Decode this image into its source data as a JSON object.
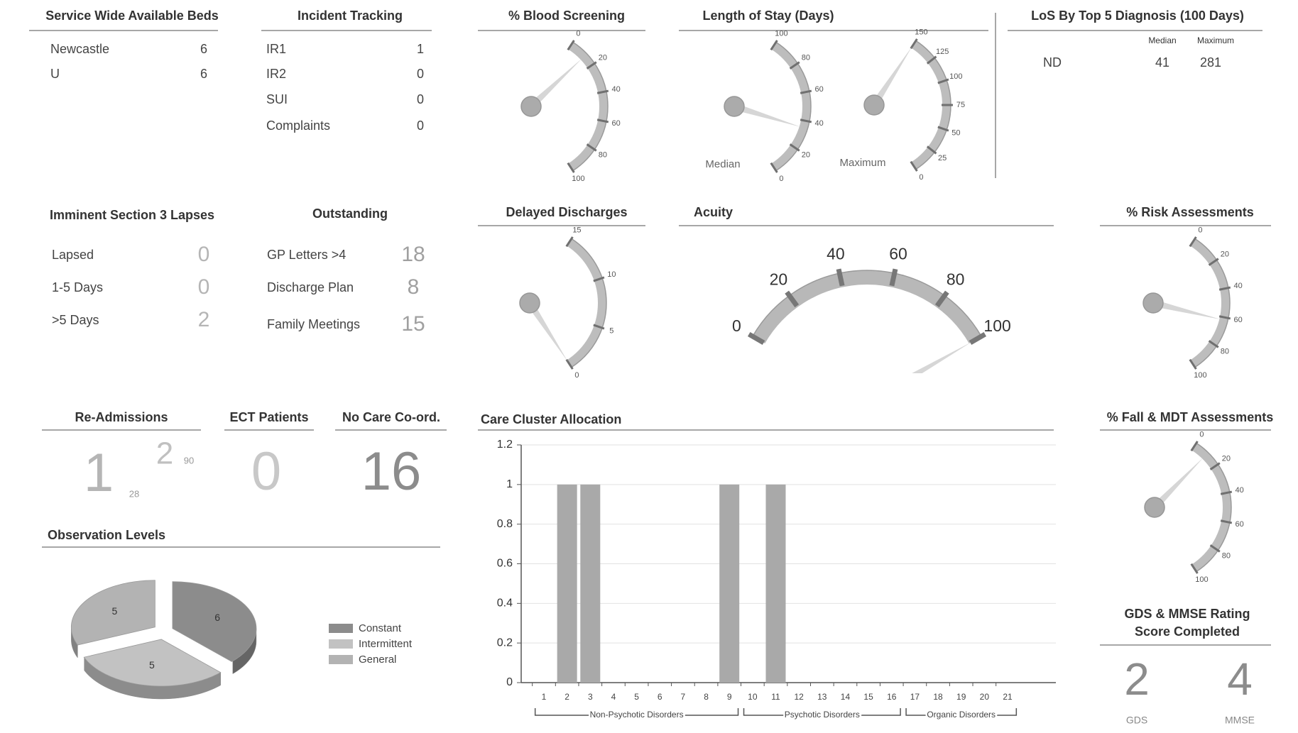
{
  "beds": {
    "title": "Service Wide Available Beds",
    "rows": [
      [
        "Newcastle",
        6
      ],
      [
        "U",
        6
      ]
    ]
  },
  "incidents": {
    "title": "Incident Tracking",
    "rows": [
      [
        "IR1",
        1
      ],
      [
        "IR2",
        0
      ],
      [
        "SUI",
        0
      ],
      [
        "Complaints",
        0
      ]
    ]
  },
  "los_diagnosis": {
    "title": "LoS By Top 5 Diagnosis (100 Days)",
    "columns": [
      "Median",
      "Maximum"
    ],
    "rows": [
      [
        "ND",
        41,
        281
      ]
    ]
  },
  "lapses": {
    "title": "Imminent Section 3 Lapses",
    "rows": [
      [
        "Lapsed",
        0
      ],
      [
        "1-5 Days",
        0
      ],
      [
        ">5 Days",
        2
      ]
    ]
  },
  "outstanding": {
    "title": "Outstanding",
    "rows": [
      [
        "GP Letters >4",
        18
      ],
      [
        "Discharge Plan",
        8
      ],
      [
        "Family Meetings",
        15
      ]
    ]
  },
  "readmissions": {
    "title": "Re-Admissions",
    "items": [
      {
        "value": 1,
        "days": 28
      },
      {
        "value": 2,
        "days": 90
      }
    ]
  },
  "ect": {
    "title": "ECT Patients",
    "value": 0
  },
  "no_care": {
    "title": "No Care Co-ord.",
    "value": 16
  },
  "gds_mmse": {
    "title_lines": [
      "GDS & MMSE Rating",
      "Score Completed"
    ],
    "items": [
      {
        "value": 2,
        "label": "GDS"
      },
      {
        "value": 4,
        "label": "MMSE"
      }
    ]
  },
  "chart_data": [
    {
      "type": "gauge",
      "title": "% Blood Screening",
      "gauges": [
        {
          "lim": [
            0,
            100
          ],
          "ticks": [
            0,
            20,
            40,
            60,
            80,
            100
          ],
          "value": 12
        }
      ]
    },
    {
      "type": "gauge",
      "title": "Length of Stay (Days)",
      "gauges": [
        {
          "label": "Median",
          "lim": [
            100,
            0
          ],
          "ticks": [
            0,
            20,
            40,
            60,
            80,
            100
          ],
          "value": 35
        },
        {
          "label": "Maximum",
          "lim": [
            150,
            0
          ],
          "ticks": [
            0,
            25,
            50,
            75,
            100,
            125,
            150
          ],
          "value": 150
        }
      ]
    },
    {
      "type": "gauge",
      "title": "Delayed Discharges",
      "gauges": [
        {
          "lim": [
            15,
            0
          ],
          "ticks": [
            0,
            5,
            10,
            15
          ],
          "value": 0
        }
      ]
    },
    {
      "type": "dial",
      "title": "Acuity",
      "gauges": [
        {
          "lim": [
            0,
            100
          ],
          "ticks": [
            0,
            20,
            40,
            60,
            80,
            100
          ],
          "value": 100
        }
      ]
    },
    {
      "type": "gauge",
      "title": "% Risk Assessments",
      "gauges": [
        {
          "lim": [
            0,
            100
          ],
          "ticks": [
            0,
            20,
            40,
            60,
            80,
            100
          ],
          "value": 62
        }
      ]
    },
    {
      "type": "gauge",
      "title": "% Fall & MDT Assessments",
      "gauges": [
        {
          "lim": [
            0,
            100
          ],
          "ticks": [
            0,
            20,
            40,
            60,
            80,
            100
          ],
          "value": 10
        }
      ]
    },
    {
      "type": "bar",
      "title": "Care Cluster Allocation",
      "categories": [
        "1",
        "2",
        "3",
        "4",
        "5",
        "6",
        "7",
        "8",
        "9",
        "10",
        "11",
        "12",
        "13",
        "14",
        "15",
        "16",
        "17",
        "18",
        "19",
        "20",
        "21"
      ],
      "values": [
        0,
        1,
        1,
        0,
        0,
        0,
        0,
        0,
        1,
        0,
        1,
        0,
        0,
        0,
        0,
        0,
        0,
        0,
        0,
        0,
        0
      ],
      "color": "#a9a9a9",
      "ylim": [
        0,
        1.2
      ],
      "yticks": [
        0,
        0.2,
        0.4,
        0.6,
        0.8,
        1,
        1.2
      ],
      "grid": true,
      "groups": [
        "Non-Psychotic Disorders",
        "Psychotic Disorders",
        "Organic Disorders"
      ]
    },
    {
      "type": "pie",
      "title": "Observation Levels",
      "categories": [
        "Constant",
        "Intermittent",
        "General"
      ],
      "values": [
        6,
        5,
        5
      ],
      "colors": [
        "#8c8c8c",
        "#c2c2c2",
        "#b3b3b3"
      ]
    }
  ]
}
